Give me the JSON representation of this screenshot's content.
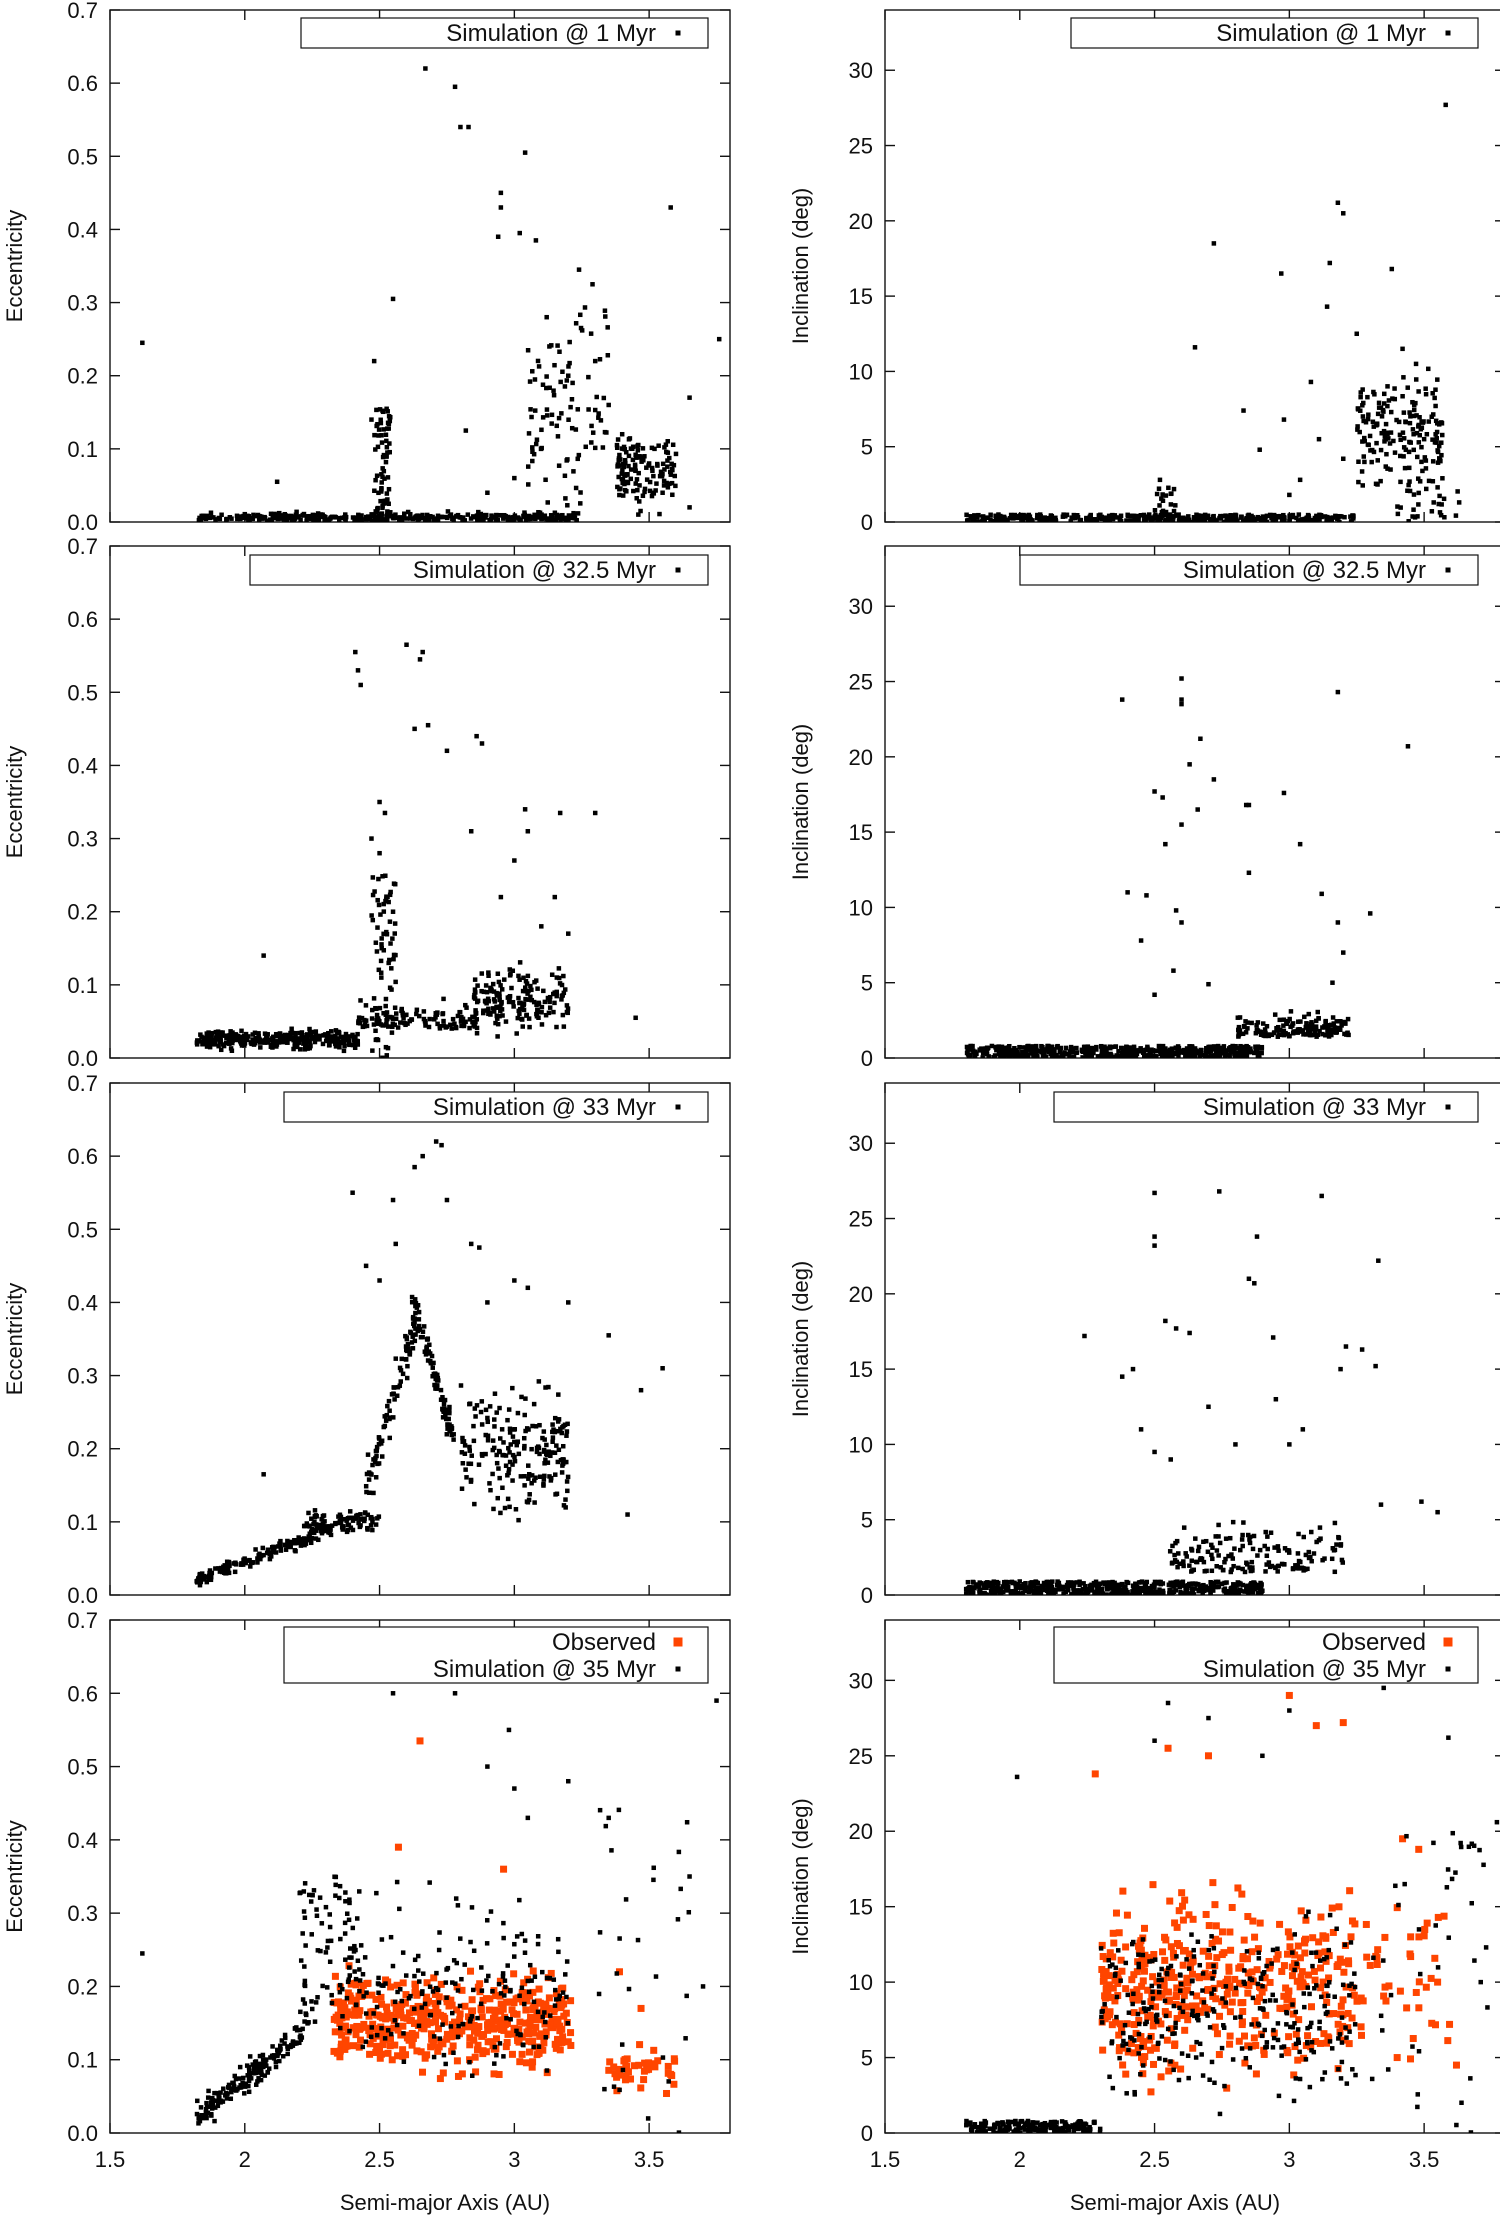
{
  "figure": {
    "x_axis_label": "Semi-major Axis (AU)",
    "x_ticks": [
      "1.5",
      "2",
      "2.5",
      "3",
      "3.5"
    ],
    "left_ylabel": "Eccentricity",
    "right_ylabel": "Inclination (deg)",
    "left_yticks": [
      "0.0",
      "0.1",
      "0.2",
      "0.3",
      "0.4",
      "0.5",
      "0.6",
      "0.7"
    ],
    "right_yticks": [
      "0",
      "5",
      "10",
      "15",
      "20",
      "25",
      "30"
    ]
  },
  "colors": {
    "simulation": "#000000",
    "observed": "#ff4500"
  },
  "chart_data": [
    {
      "panel": "row1-left",
      "type": "scatter",
      "xlabel": "",
      "ylabel": "Eccentricity",
      "xlim": [
        1.5,
        3.8
      ],
      "ylim": [
        0,
        0.7
      ],
      "grid": false,
      "legend_position": "top-right",
      "series": [
        {
          "name": "Simulation @ 1 Myr",
          "marker": "small-square",
          "color": "#000000",
          "points": [
            [
              1.62,
              0.245
            ],
            [
              2.67,
              0.62
            ],
            [
              2.78,
              0.595
            ],
            [
              2.8,
              0.54
            ],
            [
              2.83,
              0.54
            ],
            [
              3.04,
              0.505
            ],
            [
              2.95,
              0.45
            ],
            [
              2.95,
              0.43
            ],
            [
              3.58,
              0.43
            ],
            [
              2.94,
              0.39
            ],
            [
              3.02,
              0.395
            ],
            [
              3.08,
              0.385
            ],
            [
              2.55,
              0.305
            ],
            [
              2.48,
              0.22
            ],
            [
              3.24,
              0.345
            ],
            [
              3.29,
              0.325
            ],
            [
              3.76,
              0.25
            ],
            [
              3.65,
              0.17
            ],
            [
              2.82,
              0.125
            ],
            [
              2.47,
              0.14
            ],
            [
              3.12,
              0.28
            ],
            [
              3.2,
              0.2
            ],
            [
              3.4,
              0.12
            ],
            [
              3.45,
              0.07
            ],
            [
              2.12,
              0.055
            ],
            [
              3.52,
              0.1
            ],
            [
              3.5,
              0.08
            ],
            [
              3.55,
              0.04
            ],
            [
              3.65,
              0.02
            ],
            [
              3.35,
              0.16
            ],
            [
              3.3,
              0.22
            ],
            [
              3.13,
              0.24
            ],
            [
              3.0,
              0.06
            ],
            [
              2.9,
              0.04
            ]
          ]
        },
        {
          "name": "",
          "generated_cluster": "sim_1myr_e"
        }
      ]
    },
    {
      "panel": "row1-right",
      "type": "scatter",
      "xlabel": "",
      "ylabel": "Inclination (deg)",
      "xlim": [
        1.5,
        3.8
      ],
      "ylim": [
        0,
        34
      ],
      "grid": false,
      "legend_position": "top-right",
      "series": [
        {
          "name": "Simulation @ 1 Myr",
          "marker": "small-square",
          "color": "#000000",
          "points": [
            [
              3.58,
              27.7
            ],
            [
              3.18,
              21.2
            ],
            [
              3.2,
              20.5
            ],
            [
              2.72,
              18.5
            ],
            [
              3.15,
              17.2
            ],
            [
              2.97,
              16.5
            ],
            [
              3.38,
              16.8
            ],
            [
              3.14,
              14.3
            ],
            [
              2.65,
              11.6
            ],
            [
              3.25,
              12.5
            ],
            [
              3.8,
              7.0
            ],
            [
              2.83,
              7.4
            ],
            [
              2.89,
              4.8
            ],
            [
              2.98,
              6.8
            ],
            [
              3.08,
              9.3
            ],
            [
              3.11,
              5.5
            ],
            [
              3.04,
              2.8
            ],
            [
              3.55,
              2.3
            ],
            [
              3.63,
              1.3
            ],
            [
              2.52,
              2.8
            ],
            [
              3.0,
              1.8
            ],
            [
              3.2,
              4.2
            ],
            [
              3.5,
              5.5
            ],
            [
              3.47,
              10.5
            ],
            [
              3.42,
              11.5
            ]
          ]
        },
        {
          "name": "",
          "generated_cluster": "sim_1myr_i"
        }
      ]
    },
    {
      "panel": "row2-left",
      "type": "scatter",
      "xlabel": "",
      "ylabel": "Eccentricity",
      "xlim": [
        1.5,
        3.8
      ],
      "ylim": [
        0,
        0.7
      ],
      "grid": false,
      "legend_position": "top-right",
      "series": [
        {
          "name": "Simulation @ 32.5 Myr",
          "marker": "small-square",
          "color": "#000000",
          "points": [
            [
              2.6,
              0.565
            ],
            [
              2.41,
              0.555
            ],
            [
              2.66,
              0.555
            ],
            [
              2.65,
              0.545
            ],
            [
              2.42,
              0.53
            ],
            [
              2.43,
              0.51
            ],
            [
              2.68,
              0.455
            ],
            [
              2.63,
              0.45
            ],
            [
              2.75,
              0.42
            ],
            [
              2.86,
              0.44
            ],
            [
              2.88,
              0.43
            ],
            [
              2.84,
              0.31
            ],
            [
              3.04,
              0.34
            ],
            [
              3.17,
              0.335
            ],
            [
              3.3,
              0.335
            ],
            [
              2.5,
              0.35
            ],
            [
              2.52,
              0.335
            ],
            [
              3.45,
              0.055
            ],
            [
              2.07,
              0.14
            ],
            [
              2.47,
              0.3
            ],
            [
              2.5,
              0.28
            ],
            [
              3.0,
              0.27
            ],
            [
              3.15,
              0.22
            ],
            [
              3.1,
              0.18
            ],
            [
              2.55,
              0.2
            ],
            [
              2.95,
              0.22
            ],
            [
              3.05,
              0.31
            ],
            [
              3.2,
              0.17
            ]
          ]
        },
        {
          "name": "",
          "generated_cluster": "sim_325_e"
        }
      ]
    },
    {
      "panel": "row2-right",
      "type": "scatter",
      "xlabel": "",
      "ylabel": "Inclination (deg)",
      "xlim": [
        1.5,
        3.8
      ],
      "ylim": [
        0,
        34
      ],
      "grid": false,
      "legend_position": "top-right",
      "series": [
        {
          "name": "Simulation @ 32.5 Myr",
          "marker": "small-square",
          "color": "#000000",
          "points": [
            [
              2.6,
              25.2
            ],
            [
              2.6,
              23.8
            ],
            [
              2.6,
              23.5
            ],
            [
              2.38,
              23.8
            ],
            [
              2.67,
              21.2
            ],
            [
              3.18,
              24.3
            ],
            [
              3.44,
              20.7
            ],
            [
              2.5,
              17.7
            ],
            [
              2.53,
              17.3
            ],
            [
              2.63,
              19.5
            ],
            [
              2.66,
              16.5
            ],
            [
              2.84,
              16.8
            ],
            [
              2.85,
              16.8
            ],
            [
              2.98,
              17.6
            ],
            [
              2.85,
              12.3
            ],
            [
              2.54,
              14.2
            ],
            [
              2.6,
              15.5
            ],
            [
              2.72,
              18.5
            ],
            [
              3.04,
              14.2
            ],
            [
              3.12,
              10.9
            ],
            [
              3.3,
              9.6
            ],
            [
              2.47,
              10.8
            ],
            [
              2.58,
              9.8
            ],
            [
              2.6,
              9.0
            ],
            [
              2.5,
              4.2
            ],
            [
              2.57,
              5.8
            ],
            [
              2.7,
              4.9
            ],
            [
              3.2,
              7.0
            ],
            [
              3.18,
              9.0
            ],
            [
              3.16,
              5.0
            ],
            [
              2.45,
              7.8
            ],
            [
              2.4,
              11.0
            ]
          ]
        },
        {
          "name": "",
          "generated_cluster": "sim_325_i"
        }
      ]
    },
    {
      "panel": "row3-left",
      "type": "scatter",
      "xlabel": "",
      "ylabel": "Eccentricity",
      "xlim": [
        1.5,
        3.8
      ],
      "ylim": [
        0,
        0.7
      ],
      "grid": false,
      "legend_position": "top-right",
      "series": [
        {
          "name": "Simulation @ 33 Myr",
          "marker": "small-square",
          "color": "#000000",
          "points": [
            [
              2.71,
              0.62
            ],
            [
              2.73,
              0.615
            ],
            [
              2.66,
              0.6
            ],
            [
              2.63,
              0.585
            ],
            [
              2.4,
              0.55
            ],
            [
              2.55,
              0.54
            ],
            [
              2.75,
              0.54
            ],
            [
              2.84,
              0.48
            ],
            [
              2.87,
              0.475
            ],
            [
              3.35,
              0.355
            ],
            [
              3.55,
              0.31
            ],
            [
              3.47,
              0.28
            ],
            [
              3.42,
              0.11
            ],
            [
              2.07,
              0.165
            ],
            [
              2.5,
              0.43
            ],
            [
              3.0,
              0.43
            ],
            [
              3.05,
              0.42
            ],
            [
              3.2,
              0.4
            ],
            [
              2.9,
              0.4
            ],
            [
              2.45,
              0.45
            ],
            [
              2.56,
              0.48
            ]
          ]
        },
        {
          "name": "",
          "generated_cluster": "sim_33_e"
        }
      ]
    },
    {
      "panel": "row3-right",
      "type": "scatter",
      "xlabel": "",
      "ylabel": "Inclination (deg)",
      "xlim": [
        1.5,
        3.8
      ],
      "ylim": [
        0,
        34
      ],
      "grid": false,
      "legend_position": "top-right",
      "series": [
        {
          "name": "Simulation @ 33 Myr",
          "marker": "small-square",
          "color": "#000000",
          "points": [
            [
              2.5,
              26.7
            ],
            [
              2.74,
              26.8
            ],
            [
              3.12,
              26.5
            ],
            [
              2.5,
              23.8
            ],
            [
              2.5,
              23.2
            ],
            [
              2.88,
              23.8
            ],
            [
              3.33,
              22.2
            ],
            [
              2.85,
              21.0
            ],
            [
              2.87,
              20.7
            ],
            [
              2.24,
              17.2
            ],
            [
              2.54,
              18.2
            ],
            [
              2.58,
              17.7
            ],
            [
              2.63,
              17.4
            ],
            [
              2.94,
              17.1
            ],
            [
              3.21,
              16.5
            ],
            [
              3.27,
              16.3
            ],
            [
              3.32,
              15.2
            ],
            [
              3.19,
              15.0
            ],
            [
              3.55,
              5.5
            ],
            [
              3.49,
              6.2
            ],
            [
              3.34,
              6.0
            ],
            [
              2.38,
              14.5
            ],
            [
              2.42,
              15.0
            ],
            [
              2.45,
              11.0
            ],
            [
              2.56,
              9.0
            ],
            [
              2.7,
              12.5
            ],
            [
              2.8,
              10.0
            ],
            [
              2.95,
              13.0
            ],
            [
              3.0,
              10.0
            ],
            [
              3.05,
              11.0
            ],
            [
              2.5,
              9.5
            ]
          ]
        },
        {
          "name": "",
          "generated_cluster": "sim_33_i"
        }
      ]
    },
    {
      "panel": "row4-left",
      "type": "scatter",
      "xlabel": "Semi-major Axis (AU)",
      "ylabel": "Eccentricity",
      "xlim": [
        1.5,
        3.8
      ],
      "ylim": [
        0,
        0.7
      ],
      "grid": false,
      "legend_position": "top-right",
      "series": [
        {
          "name": "Observed",
          "marker": "square",
          "color": "#ff4500",
          "generated_cluster": "obs_e",
          "points": [
            [
              2.65,
              0.535
            ],
            [
              2.57,
              0.39
            ],
            [
              2.96,
              0.36
            ],
            [
              3.39,
              0.22
            ],
            [
              3.47,
              0.17
            ],
            [
              3.58,
              0.08
            ]
          ]
        },
        {
          "name": "Simulation @ 35 Myr",
          "marker": "small-square",
          "color": "#000000",
          "generated_cluster": "sim_35_e",
          "points": [
            [
              1.62,
              0.245
            ],
            [
              2.4,
              0.62
            ],
            [
              2.55,
              0.6
            ],
            [
              2.6,
              0.65
            ],
            [
              2.7,
              0.62
            ],
            [
              2.78,
              0.6
            ],
            [
              3.0,
              0.62
            ],
            [
              3.75,
              0.59
            ],
            [
              3.2,
              0.48
            ],
            [
              3.05,
              0.43
            ],
            [
              3.35,
              0.43
            ],
            [
              2.9,
              0.5
            ],
            [
              3.0,
              0.47
            ],
            [
              3.65,
              0.35
            ],
            [
              3.7,
              0.2
            ],
            [
              2.98,
              0.55
            ]
          ]
        }
      ]
    },
    {
      "panel": "row4-right",
      "type": "scatter",
      "xlabel": "Semi-major Axis (AU)",
      "ylabel": "Inclination (deg)",
      "xlim": [
        1.5,
        3.8
      ],
      "ylim": [
        0,
        34
      ],
      "grid": false,
      "legend_position": "top-right",
      "series": [
        {
          "name": "Observed",
          "marker": "square",
          "color": "#ff4500",
          "generated_cluster": "obs_i",
          "points": [
            [
              3.0,
              29.0
            ],
            [
              3.2,
              27.2
            ],
            [
              3.1,
              27.0
            ],
            [
              2.7,
              25.0
            ],
            [
              2.55,
              25.5
            ],
            [
              3.42,
              19.5
            ],
            [
              3.48,
              18.8
            ],
            [
              3.62,
              4.5
            ],
            [
              3.55,
              10.0
            ],
            [
              3.4,
              5.0
            ],
            [
              3.45,
              13.0
            ],
            [
              2.28,
              23.8
            ]
          ]
        },
        {
          "name": "Simulation @ 35 Myr",
          "marker": "small-square",
          "color": "#000000",
          "generated_cluster": "sim_35_i",
          "points": [
            [
              1.99,
              23.6
            ],
            [
              3.59,
              26.2
            ],
            [
              3.77,
              20.6
            ],
            [
              3.73,
              12.3
            ],
            [
              3.71,
              10.0
            ],
            [
              3.69,
              33.0
            ],
            [
              3.35,
              29.5
            ],
            [
              2.55,
              28.5
            ],
            [
              2.7,
              27.5
            ],
            [
              3.0,
              28.0
            ],
            [
              2.5,
              26.0
            ],
            [
              2.9,
              25.0
            ]
          ]
        }
      ]
    }
  ]
}
